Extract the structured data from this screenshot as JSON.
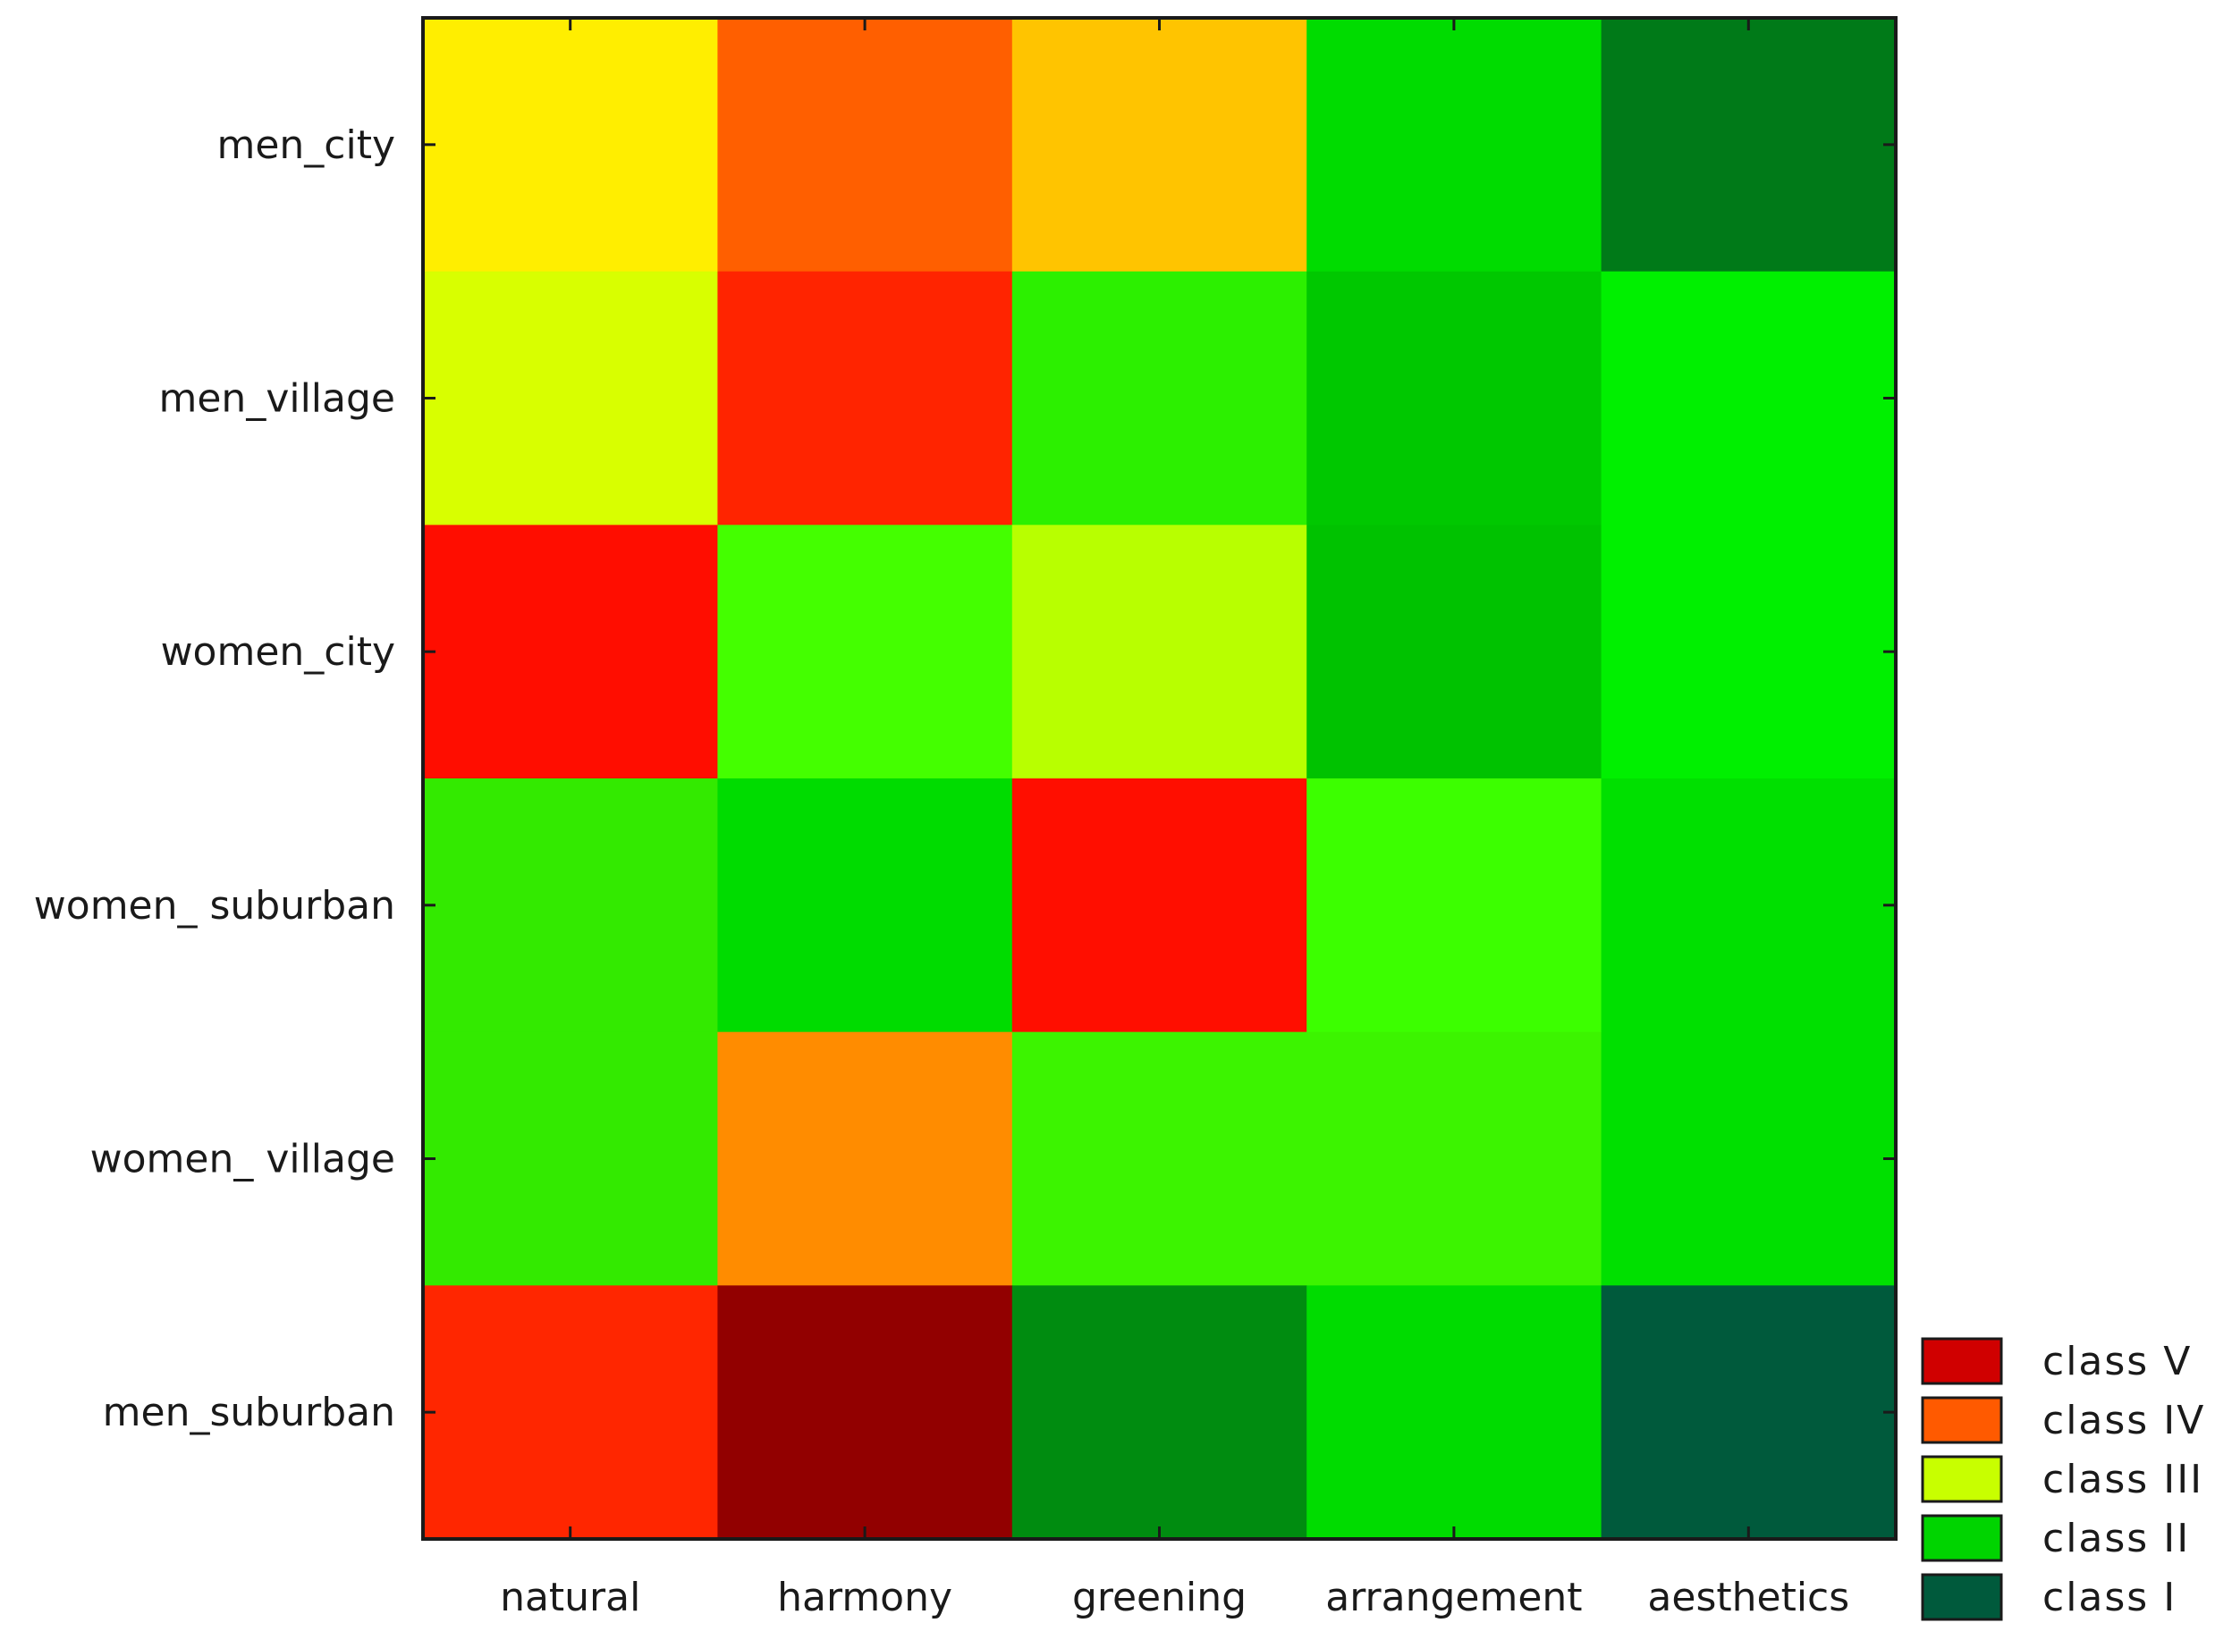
{
  "chart_data": {
    "type": "heatmap",
    "rows": [
      "men_city",
      "men_village",
      "women_city",
      "women_ suburban",
      "women_ village",
      "men_suburban"
    ],
    "columns": [
      "natural",
      "harmony",
      "greening",
      "arrangement",
      "aesthetics"
    ],
    "cells": [
      [
        "#ffee00",
        "#ff5f00",
        "#ffc400",
        "#00dc00",
        "#007a18"
      ],
      [
        "#d8ff00",
        "#ff2400",
        "#2cf000",
        "#00c800",
        "#00f000"
      ],
      [
        "#ff0d00",
        "#44ff00",
        "#b8ff00",
        "#00c200",
        "#00f000"
      ],
      [
        "#33ea00",
        "#00dc00",
        "#ff0e00",
        "#3cff00",
        "#00e000"
      ],
      [
        "#33ea00",
        "#ff8c00",
        "#3cf400",
        "#3cf400",
        "#00e000"
      ],
      [
        "#ff2600",
        "#920000",
        "#008c10",
        "#00dc00",
        "#005a3c"
      ]
    ],
    "legend": {
      "position": "bottom-right",
      "entries": [
        {
          "label": "class  V",
          "color": "#d00000"
        },
        {
          "label": "class  IV",
          "color": "#ff5a00"
        },
        {
          "label": "class  III",
          "color": "#c8ff00"
        },
        {
          "label": "class  II",
          "color": "#00d400"
        },
        {
          "label": "class  I",
          "color": "#005a3c"
        }
      ]
    },
    "grid": false
  }
}
